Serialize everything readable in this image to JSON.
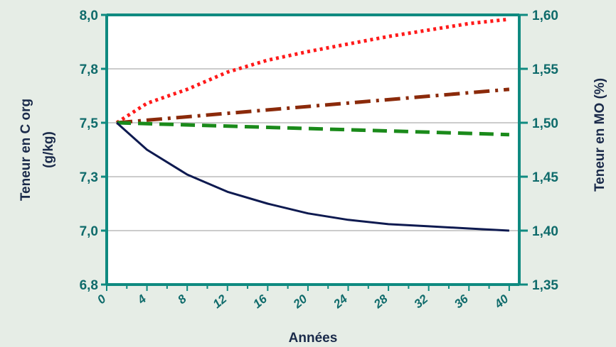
{
  "chart_data": {
    "type": "line",
    "xlabel": "Années",
    "ylabel_left_line1": "Teneur en C org",
    "ylabel_left_line2": "(g/kg)",
    "ylabel_right": "Teneur en MO (%)",
    "x_ticks": [
      "0",
      "4",
      "8",
      "12",
      "16",
      "20",
      "24",
      "28",
      "32",
      "36",
      "40"
    ],
    "y_left_ticks": [
      "8,0",
      "7,8",
      "7,5",
      "7,3",
      "7,0",
      "6,8"
    ],
    "y_right_ticks": [
      "1,60",
      "1,55",
      "1,50",
      "1,45",
      "1,40",
      "1,35"
    ],
    "xlim": [
      0,
      41
    ],
    "ylim_right": [
      1.35,
      1.6
    ],
    "grid": true,
    "colors": {
      "background": "#e6ede6",
      "plot_bg": "#ffffff",
      "axis": "#0f8a80",
      "grid": "#9a9a9a"
    },
    "series": [
      {
        "color": "#ff1a1a",
        "dash": "dotted",
        "x": [
          1,
          4,
          8,
          12,
          16,
          20,
          24,
          28,
          32,
          36,
          40
        ],
        "y": [
          1.5,
          1.518,
          1.531,
          1.547,
          1.558,
          1.566,
          1.573,
          1.58,
          1.586,
          1.592,
          1.596
        ]
      },
      {
        "color": "#8b2a0a",
        "dash": "dash-dot",
        "x": [
          1,
          40
        ],
        "y": [
          1.5,
          1.531
        ]
      },
      {
        "color": "#1a8a1a",
        "dash": "dashed",
        "x": [
          1,
          40
        ],
        "y": [
          1.5,
          1.489
        ]
      },
      {
        "color": "#0e1a50",
        "dash": "solid",
        "x": [
          1,
          4,
          8,
          12,
          16,
          20,
          24,
          28,
          32,
          36,
          40
        ],
        "y": [
          1.5,
          1.475,
          1.452,
          1.436,
          1.425,
          1.416,
          1.41,
          1.406,
          1.404,
          1.402,
          1.4
        ]
      }
    ]
  }
}
